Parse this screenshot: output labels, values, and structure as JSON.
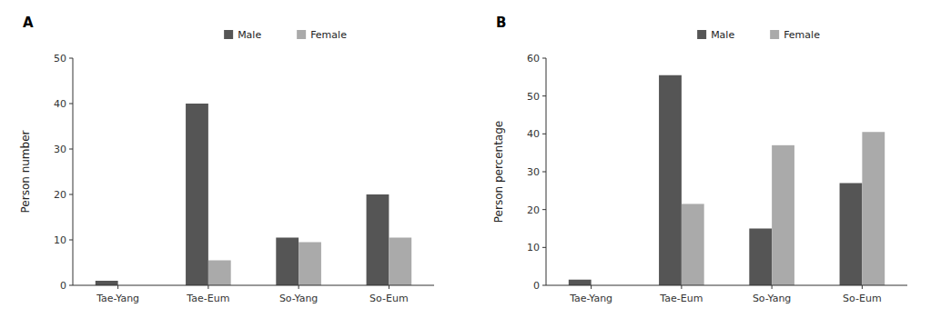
{
  "chart_data": [
    {
      "type": "bar",
      "title": "A",
      "y_label": "Person number",
      "categories": [
        "Tae-Yang",
        "Tae-Eum",
        "So-Yang",
        "So-Eum"
      ],
      "series": [
        {
          "name": "Male",
          "color": "#555555",
          "values": [
            1,
            40,
            10.5,
            20
          ]
        },
        {
          "name": "Female",
          "color": "#aaaaaa",
          "values": [
            0,
            5.5,
            9.5,
            10.5
          ]
        }
      ],
      "ylim": [
        0,
        50
      ],
      "yticks": [
        0,
        10,
        20,
        30,
        40,
        50
      ],
      "grid": false,
      "legend": "top"
    },
    {
      "type": "bar",
      "title": "B",
      "y_label": "Person percentage",
      "categories": [
        "Tae-Yang",
        "Tae-Eum",
        "So-Yang",
        "So-Eum"
      ],
      "series": [
        {
          "name": "Male",
          "color": "#555555",
          "values": [
            1.5,
            55.5,
            15,
            27
          ]
        },
        {
          "name": "Female",
          "color": "#aaaaaa",
          "values": [
            0,
            21.5,
            37,
            40.5
          ]
        }
      ],
      "ylim": [
        0,
        60
      ],
      "yticks": [
        0,
        10,
        20,
        30,
        40,
        50,
        60
      ],
      "grid": false,
      "legend": "top"
    }
  ]
}
